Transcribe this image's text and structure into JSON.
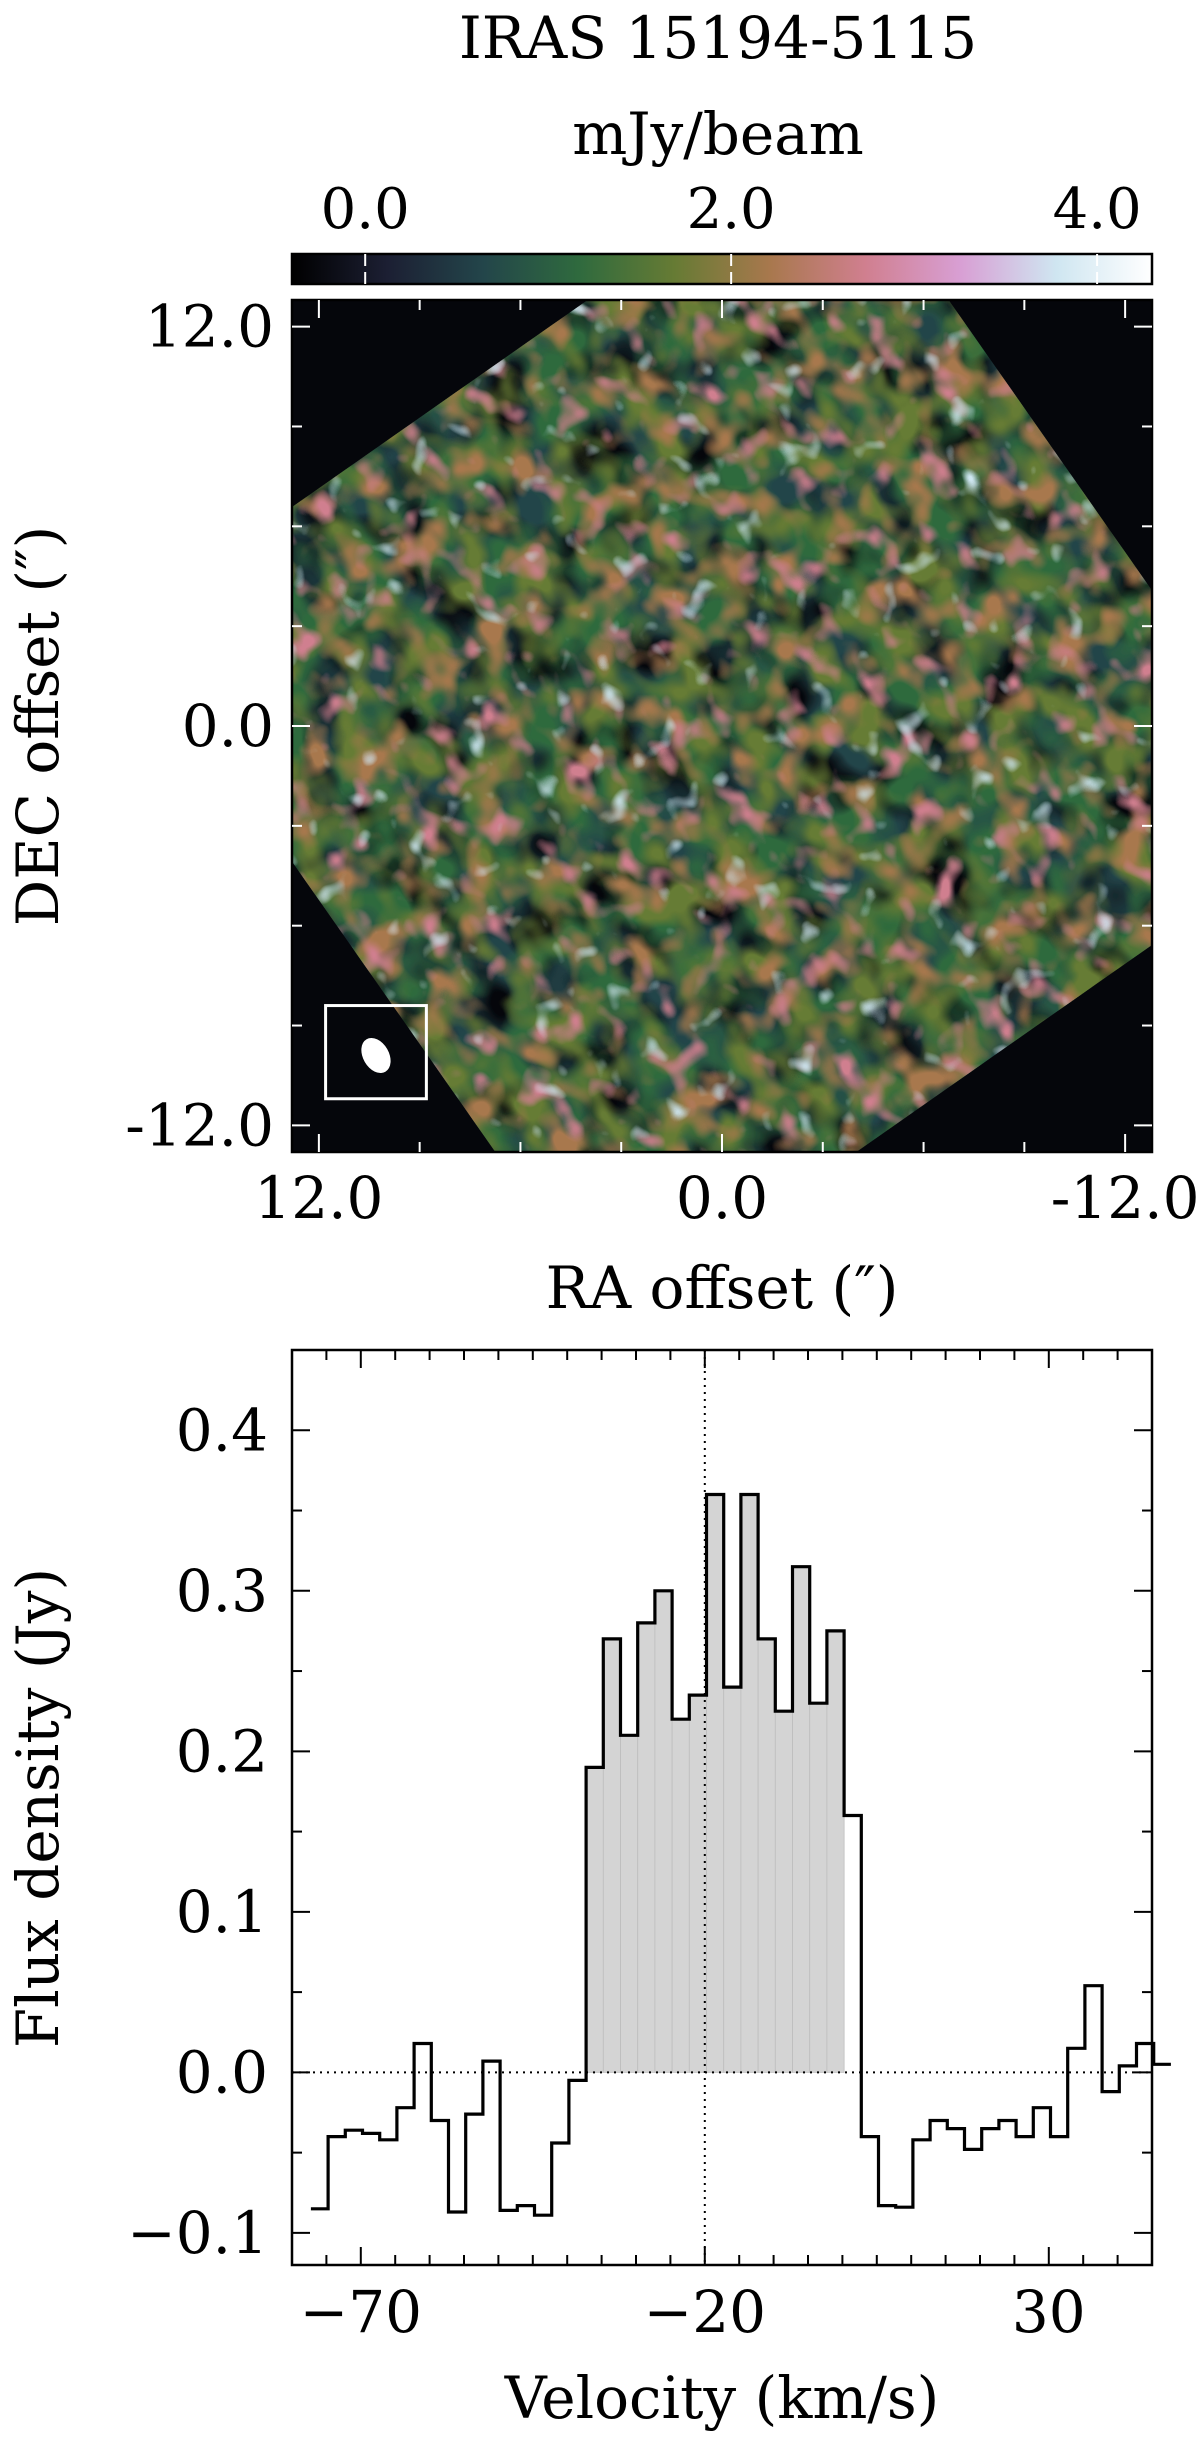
{
  "chart_data": [
    {
      "type": "heatmap",
      "title": "IRAS 15194-5115",
      "colorbar": {
        "label": "mJy/beam",
        "range": [
          -0.4,
          4.3
        ],
        "ticks": [
          0.0,
          2.0,
          4.0
        ],
        "tick_labels": [
          "0.0",
          "2.0",
          "4.0"
        ],
        "colormap": [
          "#000000",
          "#1c1f33",
          "#23454a",
          "#2f6a3e",
          "#667b34",
          "#a8784d",
          "#d07f8f",
          "#d89fd4",
          "#cfe6f1",
          "#ffffff"
        ]
      },
      "xlabel": "RA offset (″)",
      "ylabel": "DEC offset (″)",
      "xlim": [
        12.8,
        -12.8
      ],
      "ylim": [
        -12.8,
        12.8
      ],
      "xticks": [
        12.0,
        0.0,
        -12.0
      ],
      "xtick_labels": [
        "12.0",
        "0.0",
        "-12.0"
      ],
      "yticks": [
        12.0,
        0.0,
        -12.0
      ],
      "ytick_labels": [
        "12.0",
        "0.0",
        "-12.0"
      ],
      "beam": {
        "ra_center": 10.3,
        "dec_center": -9.9,
        "major": 0.8,
        "minor": 0.55,
        "pa_deg": 60
      },
      "beam_box": {
        "ra_range": [
          11.8,
          8.8
        ],
        "dec_range": [
          -11.2,
          -8.4
        ]
      },
      "noise": "patchy emission, no compact source"
    },
    {
      "type": "line",
      "style": "step",
      "xlabel": "Velocity (km/s)",
      "ylabel": "Flux density (Jy)",
      "xlim": [
        -80,
        45
      ],
      "ylim": [
        -0.12,
        0.45
      ],
      "xticks": [
        -70,
        -20,
        30
      ],
      "xtick_labels": [
        "−70",
        "−20",
        "30"
      ],
      "yticks": [
        -0.1,
        0.0,
        0.1,
        0.2,
        0.3,
        0.4
      ],
      "ytick_labels": [
        "−0.1",
        "0.0",
        "0.1",
        "0.2",
        "0.3",
        "0.4"
      ],
      "bin_width": 2.5,
      "x_start": -76,
      "values": [
        -0.085,
        -0.04,
        -0.036,
        -0.038,
        -0.042,
        -0.022,
        0.018,
        -0.03,
        -0.087,
        -0.026,
        0.007,
        -0.086,
        -0.083,
        -0.089,
        -0.044,
        -0.005,
        0.19,
        0.27,
        0.21,
        0.28,
        0.3,
        0.22,
        0.235,
        0.36,
        0.24,
        0.36,
        0.27,
        0.225,
        0.315,
        0.23,
        0.275,
        0.16,
        -0.04,
        -0.083,
        -0.084,
        -0.042,
        -0.03,
        -0.035,
        -0.048,
        -0.035,
        -0.03,
        -0.04,
        -0.022,
        -0.04,
        0.015,
        0.054,
        -0.012,
        0.004,
        0.018,
        0.005
      ],
      "shaded_range": [
        -37,
        1
      ],
      "systemic_velocity": -20,
      "zero_line": true
    }
  ]
}
